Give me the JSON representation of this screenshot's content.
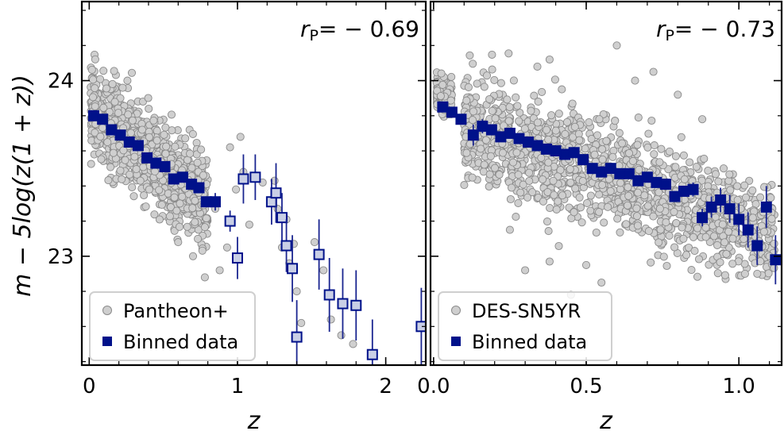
{
  "chart_data": [
    {
      "type": "scatter",
      "panel": "left",
      "dataset": "Pantheon+",
      "xlabel": "z",
      "ylabel": "m − 5log(z(1 + z))",
      "xlim": [
        -0.05,
        2.27
      ],
      "ylim": [
        22.38,
        24.45
      ],
      "x_ticks": [
        0,
        1,
        2
      ],
      "x_tick_labels": [
        "0",
        "1",
        "2"
      ],
      "y_ticks": [
        23,
        24
      ],
      "y_tick_labels": [
        "23",
        "24"
      ],
      "corr_label": "r",
      "corr_sub": "P",
      "corr_value": "= − 0.69",
      "legend": {
        "scatter_label": "Pantheon+",
        "binned_label": "Binned data",
        "position": "lower-left"
      },
      "scatter_cloud": [
        {
          "x0": 0.01,
          "x1": 0.8,
          "center0": 23.84,
          "slope": -0.72,
          "spread": 0.22,
          "n": 1100
        }
      ],
      "scatter_extra": [
        [
          0.85,
          23.27
        ],
        [
          0.88,
          22.92
        ],
        [
          0.93,
          23.05
        ],
        [
          0.95,
          23.62
        ],
        [
          0.99,
          23.38
        ],
        [
          1.02,
          23.68
        ],
        [
          1.04,
          23.48
        ],
        [
          1.08,
          23.18
        ],
        [
          1.17,
          23.42
        ],
        [
          1.25,
          23.43
        ],
        [
          1.27,
          23.27
        ],
        [
          1.3,
          23.05
        ],
        [
          1.33,
          23.21
        ],
        [
          1.35,
          22.96
        ],
        [
          1.38,
          23.07
        ],
        [
          1.4,
          22.8
        ],
        [
          1.43,
          22.62
        ],
        [
          1.52,
          23.08
        ],
        [
          1.58,
          22.92
        ],
        [
          1.63,
          22.64
        ],
        [
          1.7,
          22.55
        ],
        [
          1.78,
          22.5
        ],
        [
          0.78,
          22.88
        ],
        [
          0.7,
          23.0
        ],
        [
          0.6,
          23.08
        ]
      ],
      "binned": {
        "x": [
          0.03,
          0.09,
          0.15,
          0.21,
          0.27,
          0.33,
          0.39,
          0.45,
          0.51,
          0.57,
          0.63,
          0.69,
          0.74,
          0.79,
          0.85,
          0.95,
          1.0,
          1.04,
          1.12,
          1.23,
          1.26,
          1.3,
          1.33,
          1.37,
          1.4,
          1.55,
          1.62,
          1.71,
          1.8,
          1.91,
          2.24
        ],
        "y": [
          23.8,
          23.78,
          23.72,
          23.69,
          23.65,
          23.63,
          23.56,
          23.53,
          23.51,
          23.44,
          23.45,
          23.41,
          23.39,
          23.31,
          23.31,
          23.2,
          22.99,
          23.44,
          23.45,
          23.31,
          23.36,
          23.22,
          23.06,
          22.93,
          22.54,
          23.01,
          22.78,
          22.73,
          22.72,
          22.44,
          22.6
        ],
        "yerr": [
          0.02,
          0.02,
          0.02,
          0.02,
          0.02,
          0.02,
          0.02,
          0.02,
          0.02,
          0.02,
          0.02,
          0.02,
          0.03,
          0.03,
          0.05,
          0.06,
          0.12,
          0.14,
          0.13,
          0.13,
          0.17,
          0.14,
          0.15,
          0.19,
          0.21,
          0.2,
          0.21,
          0.2,
          0.2,
          0.2,
          0.22
        ],
        "filled_last": 14
      }
    },
    {
      "type": "scatter",
      "panel": "right",
      "dataset": "DES-SN5YR",
      "xlabel": "z",
      "ylabel": "",
      "xlim": [
        -0.01,
        1.14
      ],
      "ylim": [
        22.38,
        24.45
      ],
      "x_ticks": [
        0.0,
        0.5,
        1.0
      ],
      "x_tick_labels": [
        "0.0",
        "0.5",
        "1.0"
      ],
      "corr_label": "r",
      "corr_sub": "P",
      "corr_value": "= − 0.73",
      "legend": {
        "scatter_label": "DES-SN5YR",
        "binned_label": "Binned data",
        "position": "lower-left"
      },
      "scatter_cloud": [
        {
          "x0": 0.01,
          "x1": 0.06,
          "center0": 23.93,
          "slope": -0.8,
          "spread": 0.09,
          "n": 230
        },
        {
          "x0": 0.1,
          "x1": 1.12,
          "center0": 23.73,
          "slope": -0.6,
          "spread": 0.26,
          "n": 1450
        }
      ],
      "scatter_extra": [
        [
          0.34,
          24.08
        ],
        [
          0.38,
          24.12
        ],
        [
          0.42,
          23.95
        ],
        [
          0.38,
          22.97
        ],
        [
          0.45,
          22.78
        ],
        [
          0.5,
          22.95
        ],
        [
          0.72,
          24.05
        ],
        [
          0.8,
          23.92
        ],
        [
          0.88,
          23.78
        ],
        [
          0.95,
          23.5
        ],
        [
          0.98,
          23.1
        ],
        [
          1.02,
          22.9
        ],
        [
          1.08,
          23.25
        ],
        [
          1.06,
          22.9
        ],
        [
          1.1,
          23.0
        ],
        [
          0.6,
          24.2
        ],
        [
          0.66,
          24.0
        ],
        [
          0.3,
          22.92
        ],
        [
          0.25,
          23.15
        ],
        [
          0.55,
          22.85
        ]
      ],
      "binned": {
        "x": [
          0.03,
          0.06,
          0.09,
          0.13,
          0.16,
          0.19,
          0.22,
          0.25,
          0.28,
          0.31,
          0.34,
          0.37,
          0.4,
          0.43,
          0.46,
          0.49,
          0.52,
          0.55,
          0.58,
          0.61,
          0.64,
          0.67,
          0.7,
          0.73,
          0.76,
          0.79,
          0.82,
          0.85,
          0.88,
          0.91,
          0.94,
          0.97,
          1.0,
          1.03,
          1.06,
          1.09,
          1.12
        ],
        "y": [
          23.85,
          23.82,
          23.78,
          23.69,
          23.74,
          23.72,
          23.68,
          23.7,
          23.67,
          23.65,
          23.63,
          23.61,
          23.6,
          23.58,
          23.59,
          23.55,
          23.5,
          23.48,
          23.5,
          23.47,
          23.47,
          23.43,
          23.45,
          23.42,
          23.41,
          23.34,
          23.37,
          23.38,
          23.22,
          23.28,
          23.32,
          23.27,
          23.21,
          23.15,
          23.06,
          23.28,
          22.98
        ],
        "yerr": [
          0.03,
          0.03,
          0.03,
          0.06,
          0.04,
          0.03,
          0.03,
          0.03,
          0.03,
          0.03,
          0.03,
          0.03,
          0.03,
          0.03,
          0.03,
          0.03,
          0.03,
          0.03,
          0.03,
          0.03,
          0.03,
          0.03,
          0.03,
          0.03,
          0.03,
          0.03,
          0.03,
          0.04,
          0.05,
          0.06,
          0.07,
          0.08,
          0.09,
          0.1,
          0.11,
          0.12,
          0.14
        ],
        "filled_last": 36
      }
    }
  ]
}
